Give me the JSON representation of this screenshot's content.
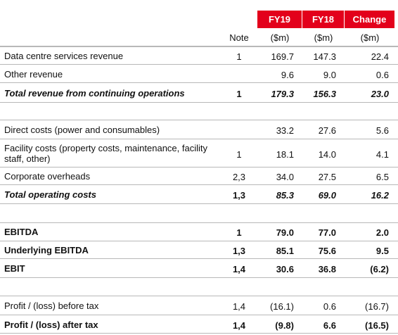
{
  "header": {
    "columns": [
      "FY19",
      "FY18",
      "Change"
    ],
    "note": "Note",
    "units": [
      "($m)",
      "($m)",
      "($m)"
    ]
  },
  "sections": [
    {
      "rows": [
        {
          "label": "Data centre services revenue",
          "note": "1",
          "values": [
            "169.7",
            "147.3",
            "22.4"
          ]
        },
        {
          "label": "Other revenue",
          "note": "",
          "values": [
            "9.6",
            "9.0",
            "0.6"
          ]
        },
        {
          "label": "Total revenue from continuing operations",
          "note": "1",
          "values": [
            "179.3",
            "156.3",
            "23.0"
          ]
        }
      ]
    },
    {
      "rows": [
        {
          "label": "Direct costs (power and consumables)",
          "note": "",
          "values": [
            "33.2",
            "27.6",
            "5.6"
          ]
        },
        {
          "label": "Facility costs (property costs, maintenance, facility staff, other)",
          "note": "1",
          "values": [
            "18.1",
            "14.0",
            "4.1"
          ]
        },
        {
          "label": "Corporate overheads",
          "note": "2,3",
          "values": [
            "34.0",
            "27.5",
            "6.5"
          ]
        },
        {
          "label": "Total operating costs",
          "note": "1,3",
          "values": [
            "85.3",
            "69.0",
            "16.2"
          ]
        }
      ]
    },
    {
      "rows": [
        {
          "label": "EBITDA",
          "note": "1",
          "values": [
            "79.0",
            "77.0",
            "2.0"
          ]
        },
        {
          "label": "Underlying EBITDA",
          "note": "1,3",
          "values": [
            "85.1",
            "75.6",
            "9.5"
          ]
        },
        {
          "label": "EBIT",
          "note": "1,4",
          "values": [
            "30.6",
            "36.8",
            "(6.2)"
          ]
        }
      ]
    },
    {
      "rows": [
        {
          "label": "Profit / (loss) before tax",
          "note": "1,4",
          "values": [
            "(16.1)",
            "0.6",
            "(16.7)"
          ]
        },
        {
          "label": "Profit / (loss) after tax",
          "note": "1,4",
          "values": [
            "(9.8)",
            "6.6",
            "(16.5)"
          ]
        }
      ]
    }
  ]
}
